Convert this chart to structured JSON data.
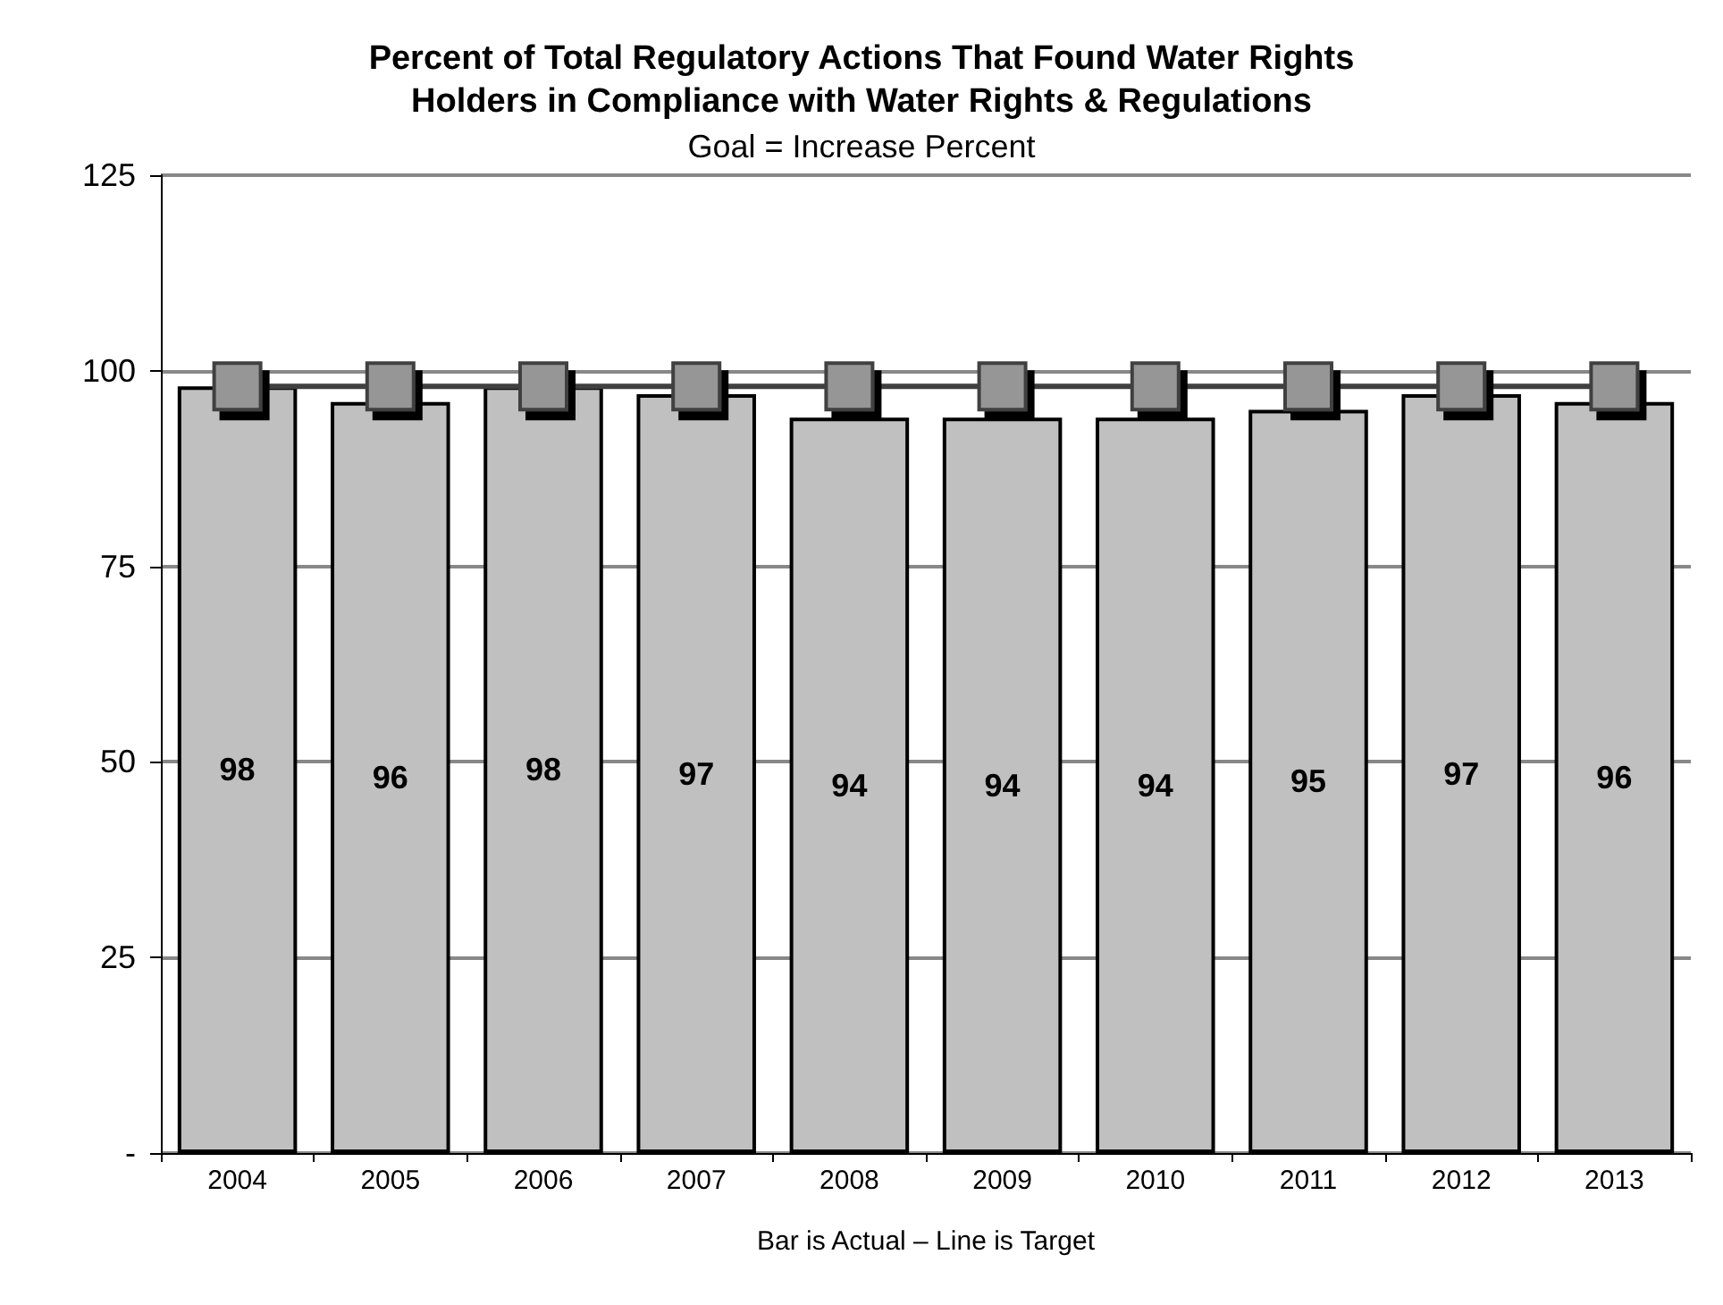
{
  "chart_data": {
    "type": "bar",
    "title": "Percent of Total Regulatory Actions That Found Water Rights\nHolders in Compliance with Water Rights & Regulations",
    "subtitle": "Goal = Increase Percent",
    "xlabel": "Bar is Actual – Line is Target",
    "categories": [
      "2004",
      "2005",
      "2006",
      "2007",
      "2008",
      "2009",
      "2010",
      "2011",
      "2012",
      "2013"
    ],
    "series": [
      {
        "color": "#c0c0c0",
        "values": [
          98,
          96,
          98,
          97,
          94,
          94,
          94,
          95,
          97,
          96
        ],
        "value_labels": [
          "98",
          "96",
          "98",
          "97",
          "94",
          "94",
          "94",
          "95",
          "97",
          "96"
        ]
      },
      {
        "type": "line",
        "color": "#969696",
        "values": [
          98,
          98,
          98,
          98,
          98,
          98,
          98,
          98,
          98,
          98
        ],
        "marker": "square"
      }
    ],
    "ylim": [
      0,
      125
    ],
    "yticks": [
      {
        "value": 0,
        "label": "-"
      },
      25,
      50,
      75,
      100,
      125
    ],
    "grid": "y"
  }
}
